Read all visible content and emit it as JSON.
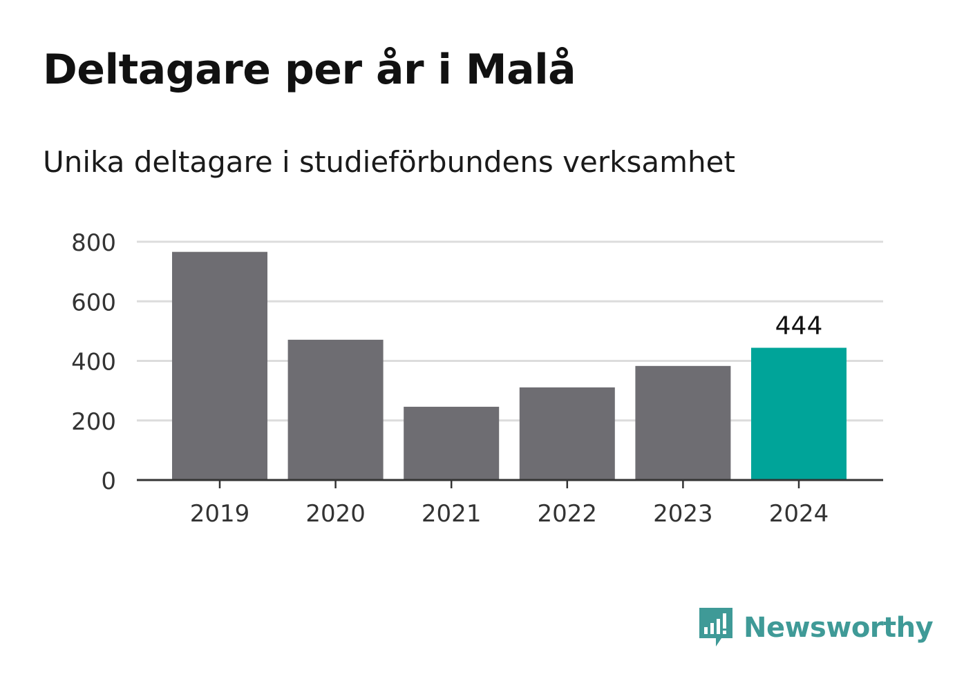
{
  "header": {
    "title": "Deltagare per år i Malå",
    "subtitle": "Unika deltagare i studieförbundens verksamhet"
  },
  "brand": {
    "name": "Newsworthy",
    "icon": "newsworthy-logo-icon",
    "color": "#3f9a97"
  },
  "chart_data": {
    "type": "bar",
    "categories": [
      "2019",
      "2020",
      "2021",
      "2022",
      "2023",
      "2024"
    ],
    "values": [
      766,
      471,
      246,
      311,
      383,
      444
    ],
    "ylim": [
      0,
      800
    ],
    "yticks": [
      0,
      200,
      400,
      600,
      800
    ],
    "grid": true,
    "colors": {
      "default": "#6e6d72",
      "highlight": "#00a499"
    },
    "highlight_index": 5,
    "data_labels": [
      {
        "index": 5,
        "text": "444"
      }
    ]
  }
}
